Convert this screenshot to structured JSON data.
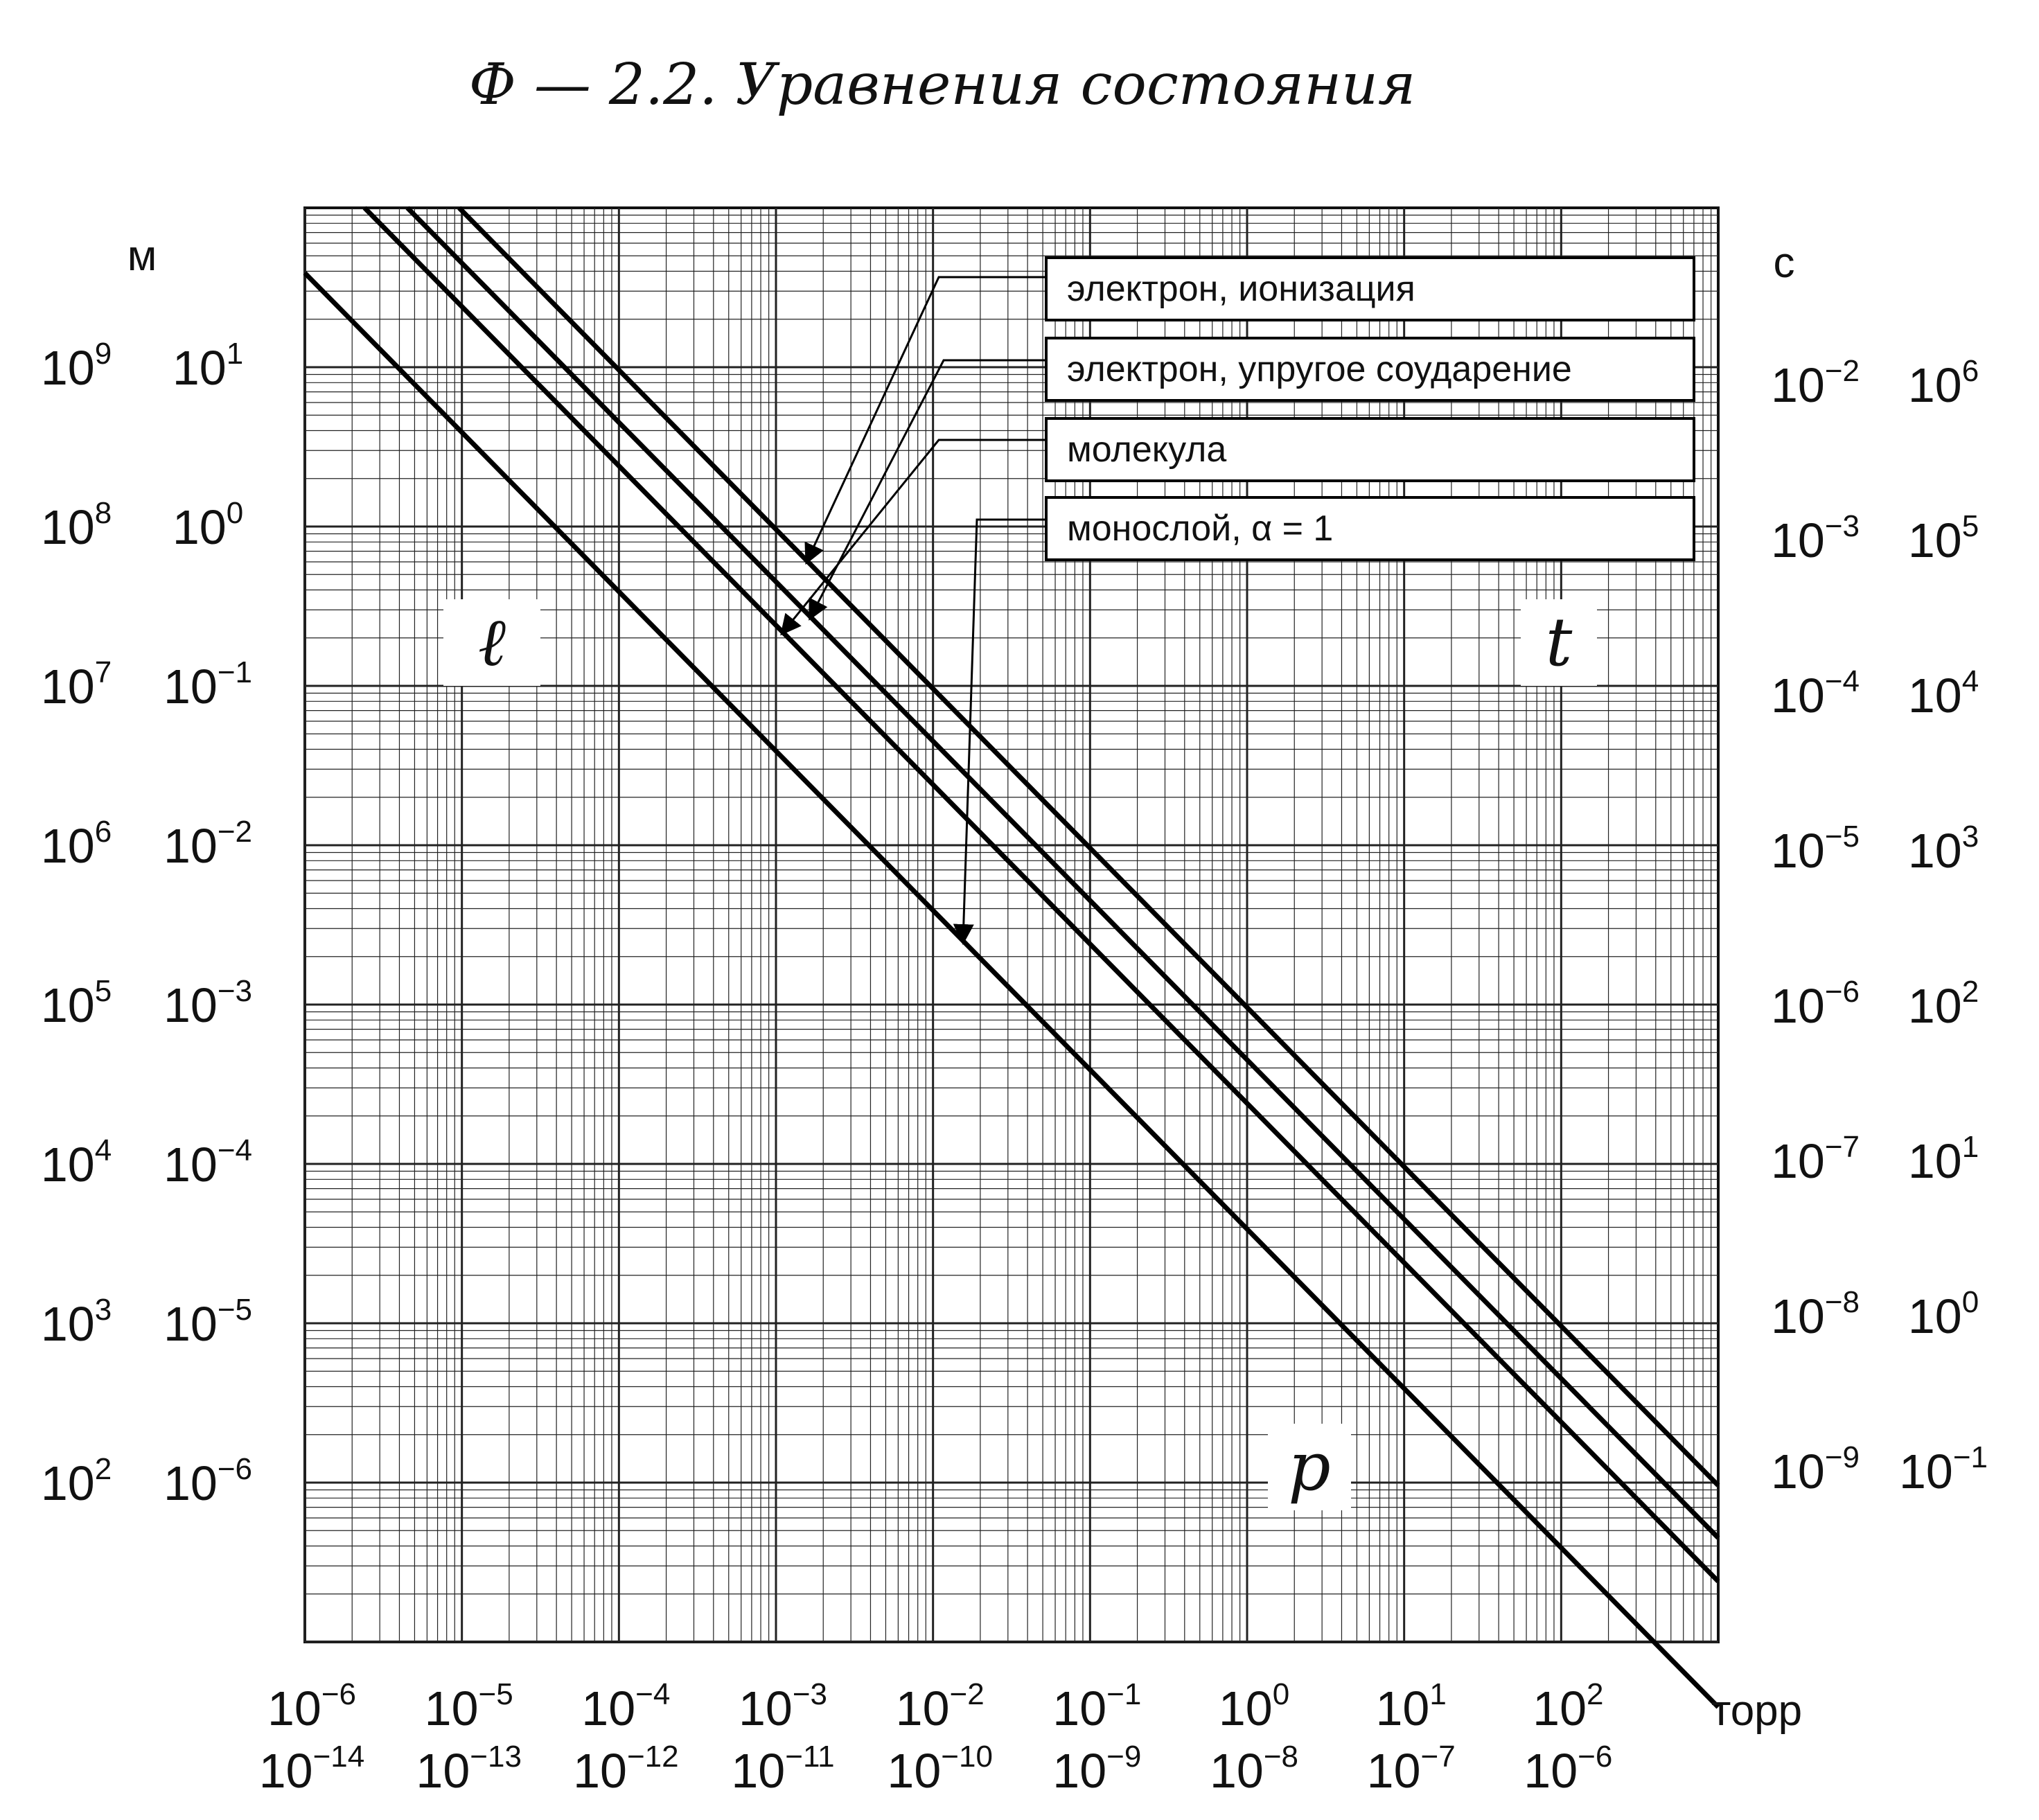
{
  "chart_data": {
    "type": "line",
    "title": "Ф — 2.2.  Уравнения состояния",
    "x_axis": {
      "scale": "log",
      "unit": "торр",
      "tick_labels_row1": [
        "10^-6",
        "10^-5",
        "10^-4",
        "10^-3",
        "10^-2",
        "10^-1",
        "10^0",
        "10^1",
        "10^2"
      ],
      "tick_labels_row2": [
        "10^-14",
        "10^-13",
        "10^-12",
        "10^-11",
        "10^-10",
        "10^-9",
        "10^-8",
        "10^-7",
        "10^-6"
      ],
      "range": [
        1e-06,
        1000
      ]
    },
    "y_left": {
      "scale": "log",
      "unit": "м",
      "tick_labels_outer": [
        "10^9",
        "10^8",
        "10^7",
        "10^6",
        "10^5",
        "10^4",
        "10^3",
        "10^2"
      ],
      "tick_labels_inner": [
        "10^1",
        "10^0",
        "10^-1",
        "10^-2",
        "10^-3",
        "10^-4",
        "10^-5",
        "10^-6"
      ],
      "range": [
        1e-07,
        100
      ]
    },
    "y_right": {
      "scale": "log",
      "unit": "с",
      "tick_labels_inner": [
        "10^-2",
        "10^-3",
        "10^-4",
        "10^-5",
        "10^-6",
        "10^-7",
        "10^-8",
        "10^-9"
      ],
      "tick_labels_outer": [
        "10^6",
        "10^5",
        "10^4",
        "10^3",
        "10^2",
        "10^1",
        "10^0",
        "10^-1"
      ]
    },
    "grid": true,
    "variable_labels": {
      "left": "ℓ",
      "right": "t",
      "bottom": "p"
    },
    "series": [
      {
        "name": "электрон, ионизация",
        "x": [
          9.6e-06,
          1000
        ],
        "y": [
          100,
          9.6e-07
        ]
      },
      {
        "name": "электрон, упругое соударение",
        "x": [
          4.5e-06,
          1000
        ],
        "y": [
          100,
          4.5e-07
        ]
      },
      {
        "name": "молекула",
        "x": [
          2.4e-06,
          1000
        ],
        "y": [
          100,
          2.4e-07
        ]
      },
      {
        "name": "монослой, α = 1",
        "x": [
          1e-06,
          1000
        ],
        "y": [
          39,
          3.9e-08
        ]
      }
    ],
    "legend_position": "top-right"
  }
}
